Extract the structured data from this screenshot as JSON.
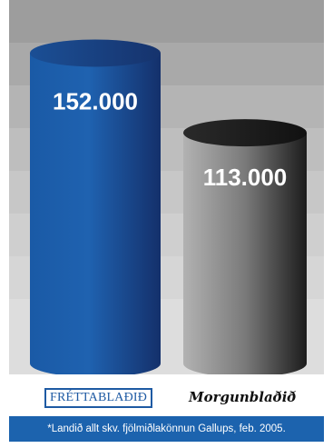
{
  "chart_data": {
    "type": "bar",
    "categories": [
      "FRÉTTABLAÐIÐ",
      "Morgunblaðið"
    ],
    "values": [
      152000,
      113000
    ],
    "value_labels": [
      "152.000",
      "113.000"
    ],
    "ylim": [
      0,
      170000
    ],
    "grid": false,
    "legend": "none",
    "bar_style": "cylinder"
  },
  "footnote": "*Landið allt skv. fjölmiðlakönnun Gallups, feb. 2005.",
  "colors": {
    "frettabladid_bar": "#1d5fae",
    "morgunbladid_bar": "#8a8a8a",
    "footnote_bg": "#1c63ae",
    "logo_blue": "#1e5aa3"
  }
}
